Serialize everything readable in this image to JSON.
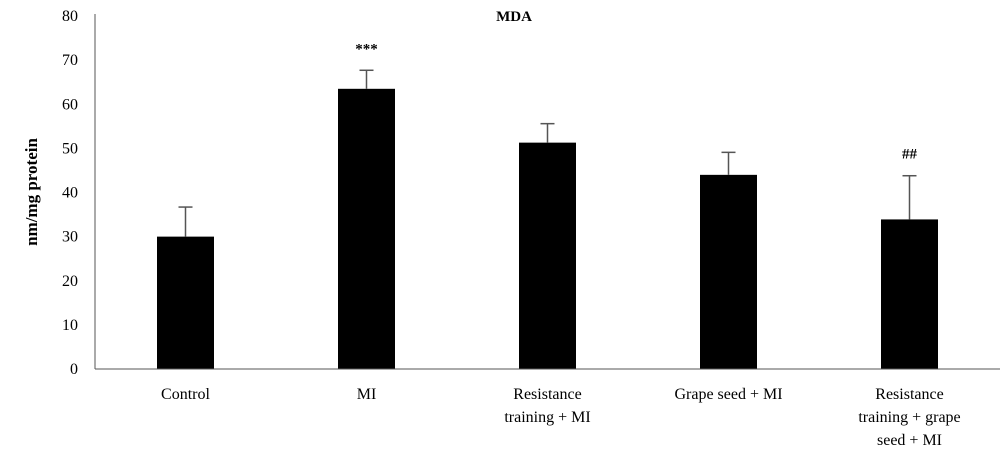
{
  "chart_data": {
    "type": "bar",
    "title": "MDA",
    "xlabel": "",
    "ylabel": "nm/mg protein",
    "ylim": [
      0,
      80
    ],
    "yticks": [
      0,
      10,
      20,
      30,
      40,
      50,
      60,
      70,
      80
    ],
    "grid": false,
    "categories": [
      [
        "Control"
      ],
      [
        "MI"
      ],
      [
        "Resistance",
        "training + MI"
      ],
      [
        "Grape seed + MI"
      ],
      [
        "Resistance",
        "training + grape",
        "seed + MI"
      ]
    ],
    "values": [
      30,
      63.5,
      51.3,
      44,
      33.9
    ],
    "error_bars": [
      6.7,
      4.2,
      4.3,
      5.1,
      9.9
    ],
    "annotations": [
      "",
      "***",
      "",
      "",
      "##"
    ],
    "bar_color": "#000000",
    "axis_color": "#555555",
    "error_color": "#555555"
  }
}
